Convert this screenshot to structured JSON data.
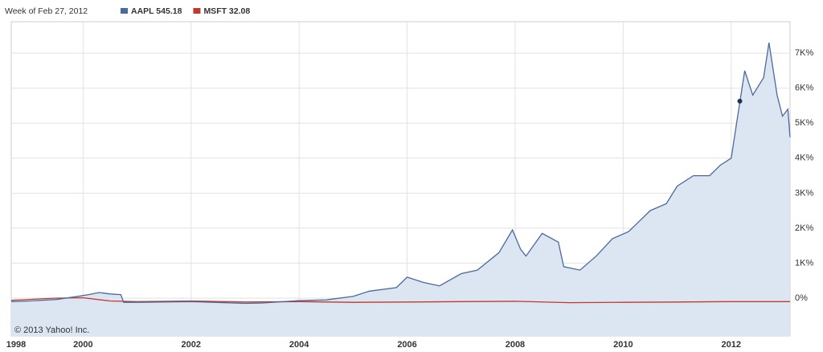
{
  "chart_data": {
    "type": "line",
    "header": "Week of Feb 27, 2012",
    "copyright": "© 2013 Yahoo! Inc.",
    "series": [
      {
        "name": "AAPL 545.18",
        "color": "#4a6a9c",
        "fill": "#dce6f2",
        "x": [
          1998.67,
          1999.0,
          1999.5,
          1999.9,
          2000.1,
          2000.3,
          2000.5,
          2000.7,
          2000.75,
          2001.0,
          2002.0,
          2003.0,
          2003.3,
          2004.0,
          2004.5,
          2005.0,
          2005.3,
          2005.8,
          2006.0,
          2006.3,
          2006.6,
          2007.0,
          2007.3,
          2007.7,
          2007.95,
          2008.1,
          2008.2,
          2008.5,
          2008.8,
          2008.9,
          2009.2,
          2009.5,
          2009.8,
          2010.1,
          2010.3,
          2010.5,
          2010.8,
          2011.0,
          2011.3,
          2011.6,
          2011.8,
          2012.0,
          2012.1,
          2012.25,
          2012.4,
          2012.6,
          2012.7,
          2012.85,
          2012.95,
          2013.05,
          2013.09
        ],
        "values": [
          -100,
          -80,
          -40,
          50,
          100,
          160,
          120,
          100,
          -120,
          -120,
          -100,
          -150,
          -140,
          -70,
          -50,
          50,
          200,
          300,
          600,
          450,
          350,
          700,
          800,
          1300,
          1950,
          1400,
          1200,
          1850,
          1600,
          900,
          800,
          1200,
          1700,
          1900,
          2200,
          2500,
          2700,
          3200,
          3500,
          3500,
          3800,
          4000,
          5000,
          6500,
          5800,
          6300,
          7300,
          5800,
          5200,
          5400,
          4600
        ]
      },
      {
        "name": "MSFT 32.08",
        "color": "#c0392b",
        "x": [
          1998.67,
          1999.5,
          2000.0,
          2000.5,
          2001.0,
          2002.0,
          2003.0,
          2004.0,
          2005.0,
          2006.0,
          2007.0,
          2008.0,
          2009.0,
          2010.0,
          2011.0,
          2012.0,
          2013.09
        ],
        "values": [
          -60,
          0,
          10,
          -80,
          -100,
          -80,
          -110,
          -100,
          -120,
          -110,
          -100,
          -90,
          -130,
          -120,
          -110,
          -100,
          -100
        ]
      }
    ],
    "highlight": {
      "x": 2012.16,
      "value": 5630
    },
    "xlim": [
      1998.67,
      2013.09
    ],
    "xticks": [
      1998,
      2000,
      2002,
      2004,
      2006,
      2008,
      2010,
      2012
    ],
    "ylim": [
      -1080,
      7900
    ],
    "yticks": [
      {
        "value": 0,
        "label": "0%"
      },
      {
        "value": 1000,
        "label": "1K%"
      },
      {
        "value": 2000,
        "label": "2K%"
      },
      {
        "value": 3000,
        "label": "3K%"
      },
      {
        "value": 4000,
        "label": "4K%"
      },
      {
        "value": 5000,
        "label": "5K%"
      },
      {
        "value": 6000,
        "label": "6K%"
      },
      {
        "value": 7000,
        "label": "7K%"
      }
    ],
    "grid": true
  }
}
